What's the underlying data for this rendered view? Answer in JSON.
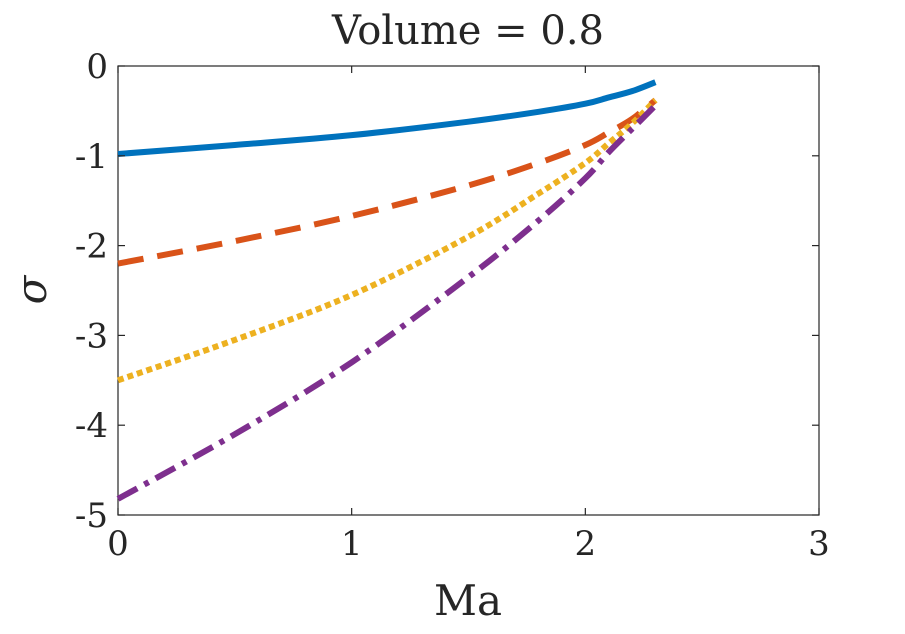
{
  "chart_data": {
    "type": "line",
    "title": "Volume = 0.8",
    "xlabel": "Ma",
    "ylabel": "σ",
    "xlim": [
      0,
      3
    ],
    "ylim": [
      -5,
      0
    ],
    "xticks": [
      0,
      1,
      2,
      3
    ],
    "yticks": [
      0,
      -1,
      -2,
      -3,
      -4,
      -5
    ],
    "xtick_labels": [
      "0",
      "1",
      "2",
      "3"
    ],
    "ytick_labels": [
      "0",
      "-1",
      "-2",
      "-3",
      "-4",
      "-5"
    ],
    "grid": false,
    "series": [
      {
        "style": "solid",
        "color": "#0072BD",
        "x": [
          0,
          0.5,
          1.0,
          1.5,
          1.8,
          2.0,
          2.1,
          2.2,
          2.3
        ],
        "y": [
          -0.98,
          -0.88,
          -0.77,
          -0.62,
          -0.51,
          -0.42,
          -0.35,
          -0.28,
          -0.18
        ]
      },
      {
        "style": "dashed",
        "color": "#D95319",
        "x": [
          0,
          0.5,
          1.0,
          1.5,
          1.8,
          2.0,
          2.1,
          2.2,
          2.3
        ],
        "y": [
          -2.2,
          -1.95,
          -1.67,
          -1.33,
          -1.08,
          -0.88,
          -0.74,
          -0.59,
          -0.38
        ]
      },
      {
        "style": "dotted",
        "color": "#EDB120",
        "x": [
          0,
          0.5,
          1.0,
          1.5,
          1.8,
          2.0,
          2.1,
          2.2,
          2.3
        ],
        "y": [
          -3.5,
          -3.05,
          -2.55,
          -1.9,
          -1.42,
          -1.08,
          -0.86,
          -0.64,
          -0.38
        ]
      },
      {
        "style": "dashdot",
        "color": "#7E2F8E",
        "x": [
          0,
          0.5,
          1.0,
          1.5,
          1.8,
          2.0,
          2.1,
          2.2,
          2.3
        ],
        "y": [
          -4.82,
          -4.1,
          -3.3,
          -2.35,
          -1.72,
          -1.25,
          -0.96,
          -0.7,
          -0.44
        ]
      }
    ]
  }
}
